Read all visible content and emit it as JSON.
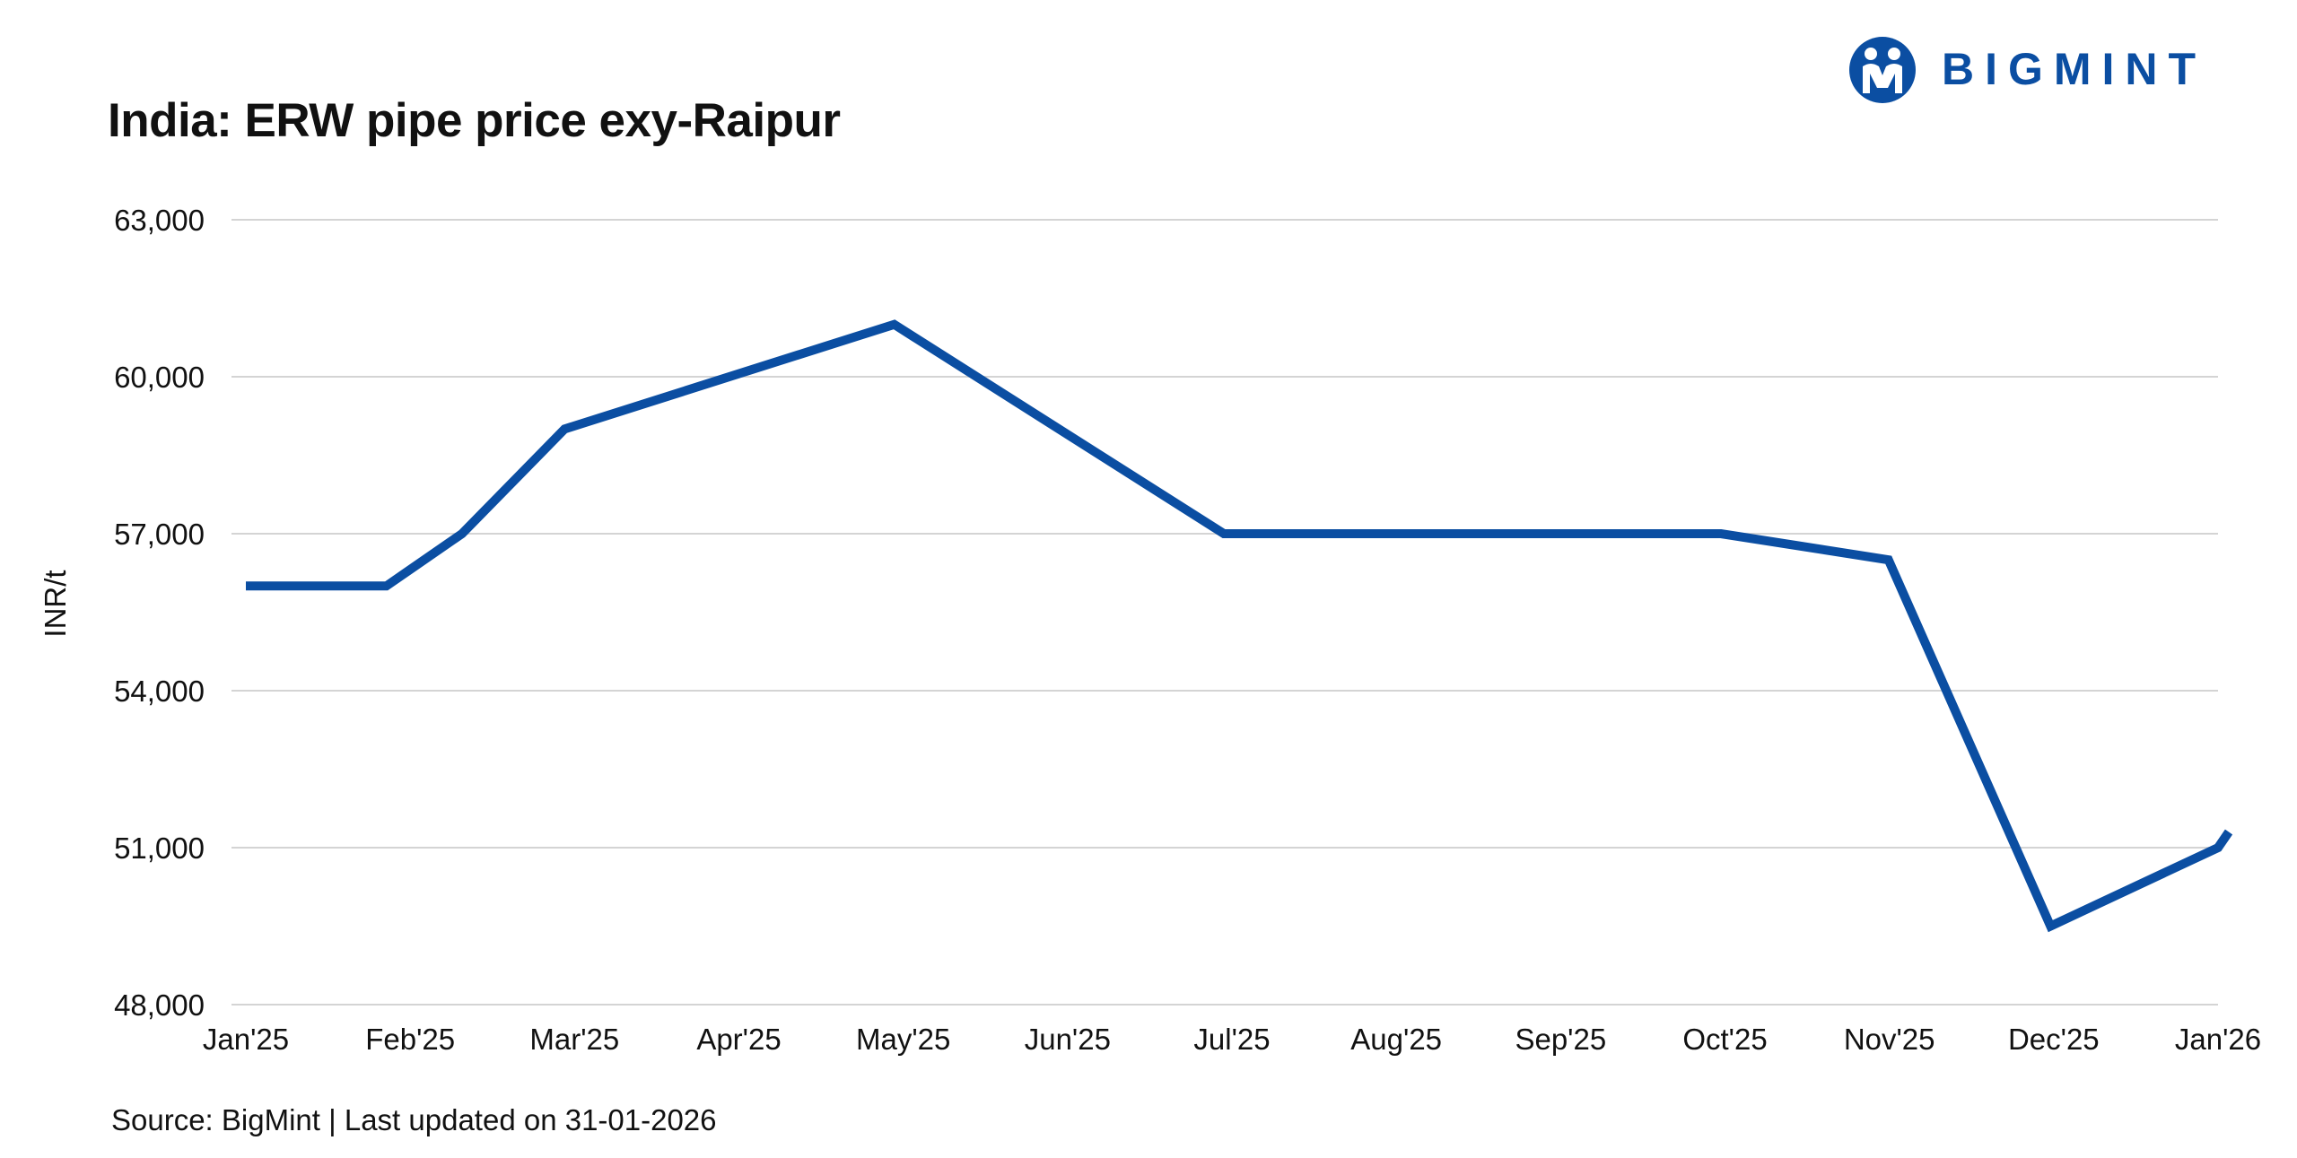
{
  "header": {
    "title": "India: ERW pipe price exy-Raipur"
  },
  "brand": {
    "name": "BIGMINT",
    "color": "#0b4ea2"
  },
  "footer": {
    "source": "Source: BigMint | Last updated on 31-01-2026"
  },
  "chart_data": {
    "type": "line",
    "title": "India: ERW pipe price exy-Raipur",
    "xlabel": "",
    "ylabel": "INR/t",
    "ylim": [
      48000,
      63000
    ],
    "yticks": [
      48000,
      51000,
      54000,
      57000,
      60000,
      63000
    ],
    "ytick_labels": [
      "48,000",
      "51,000",
      "54,000",
      "57,000",
      "60,000",
      "63,000"
    ],
    "grid": true,
    "legend": "none",
    "line_color": "#0b4ea2",
    "x_tick_labels": [
      "Jan'25",
      "Feb'25",
      "Mar'25",
      "Apr'25",
      "May'25",
      "Jun'25",
      "Jul'25",
      "Aug'25",
      "Sep'25",
      "Oct'25",
      "Nov'25",
      "Dec'25",
      "Jan'26"
    ],
    "series": [
      {
        "values": [
          {
            "x": "2025-01-01",
            "y": 56000
          },
          {
            "x": "2025-01-27",
            "y": 56000
          },
          {
            "x": "2025-02-10",
            "y": 57000
          },
          {
            "x": "2025-03-01",
            "y": 59000
          },
          {
            "x": "2025-05-01",
            "y": 61000
          },
          {
            "x": "2025-07-01",
            "y": 57000
          },
          {
            "x": "2025-10-01",
            "y": 57000
          },
          {
            "x": "2025-11-01",
            "y": 56500
          },
          {
            "x": "2025-12-01",
            "y": 49500
          },
          {
            "x": "2026-01-01",
            "y": 51000
          },
          {
            "x": "2026-01-03",
            "y": 51300
          }
        ]
      }
    ]
  }
}
